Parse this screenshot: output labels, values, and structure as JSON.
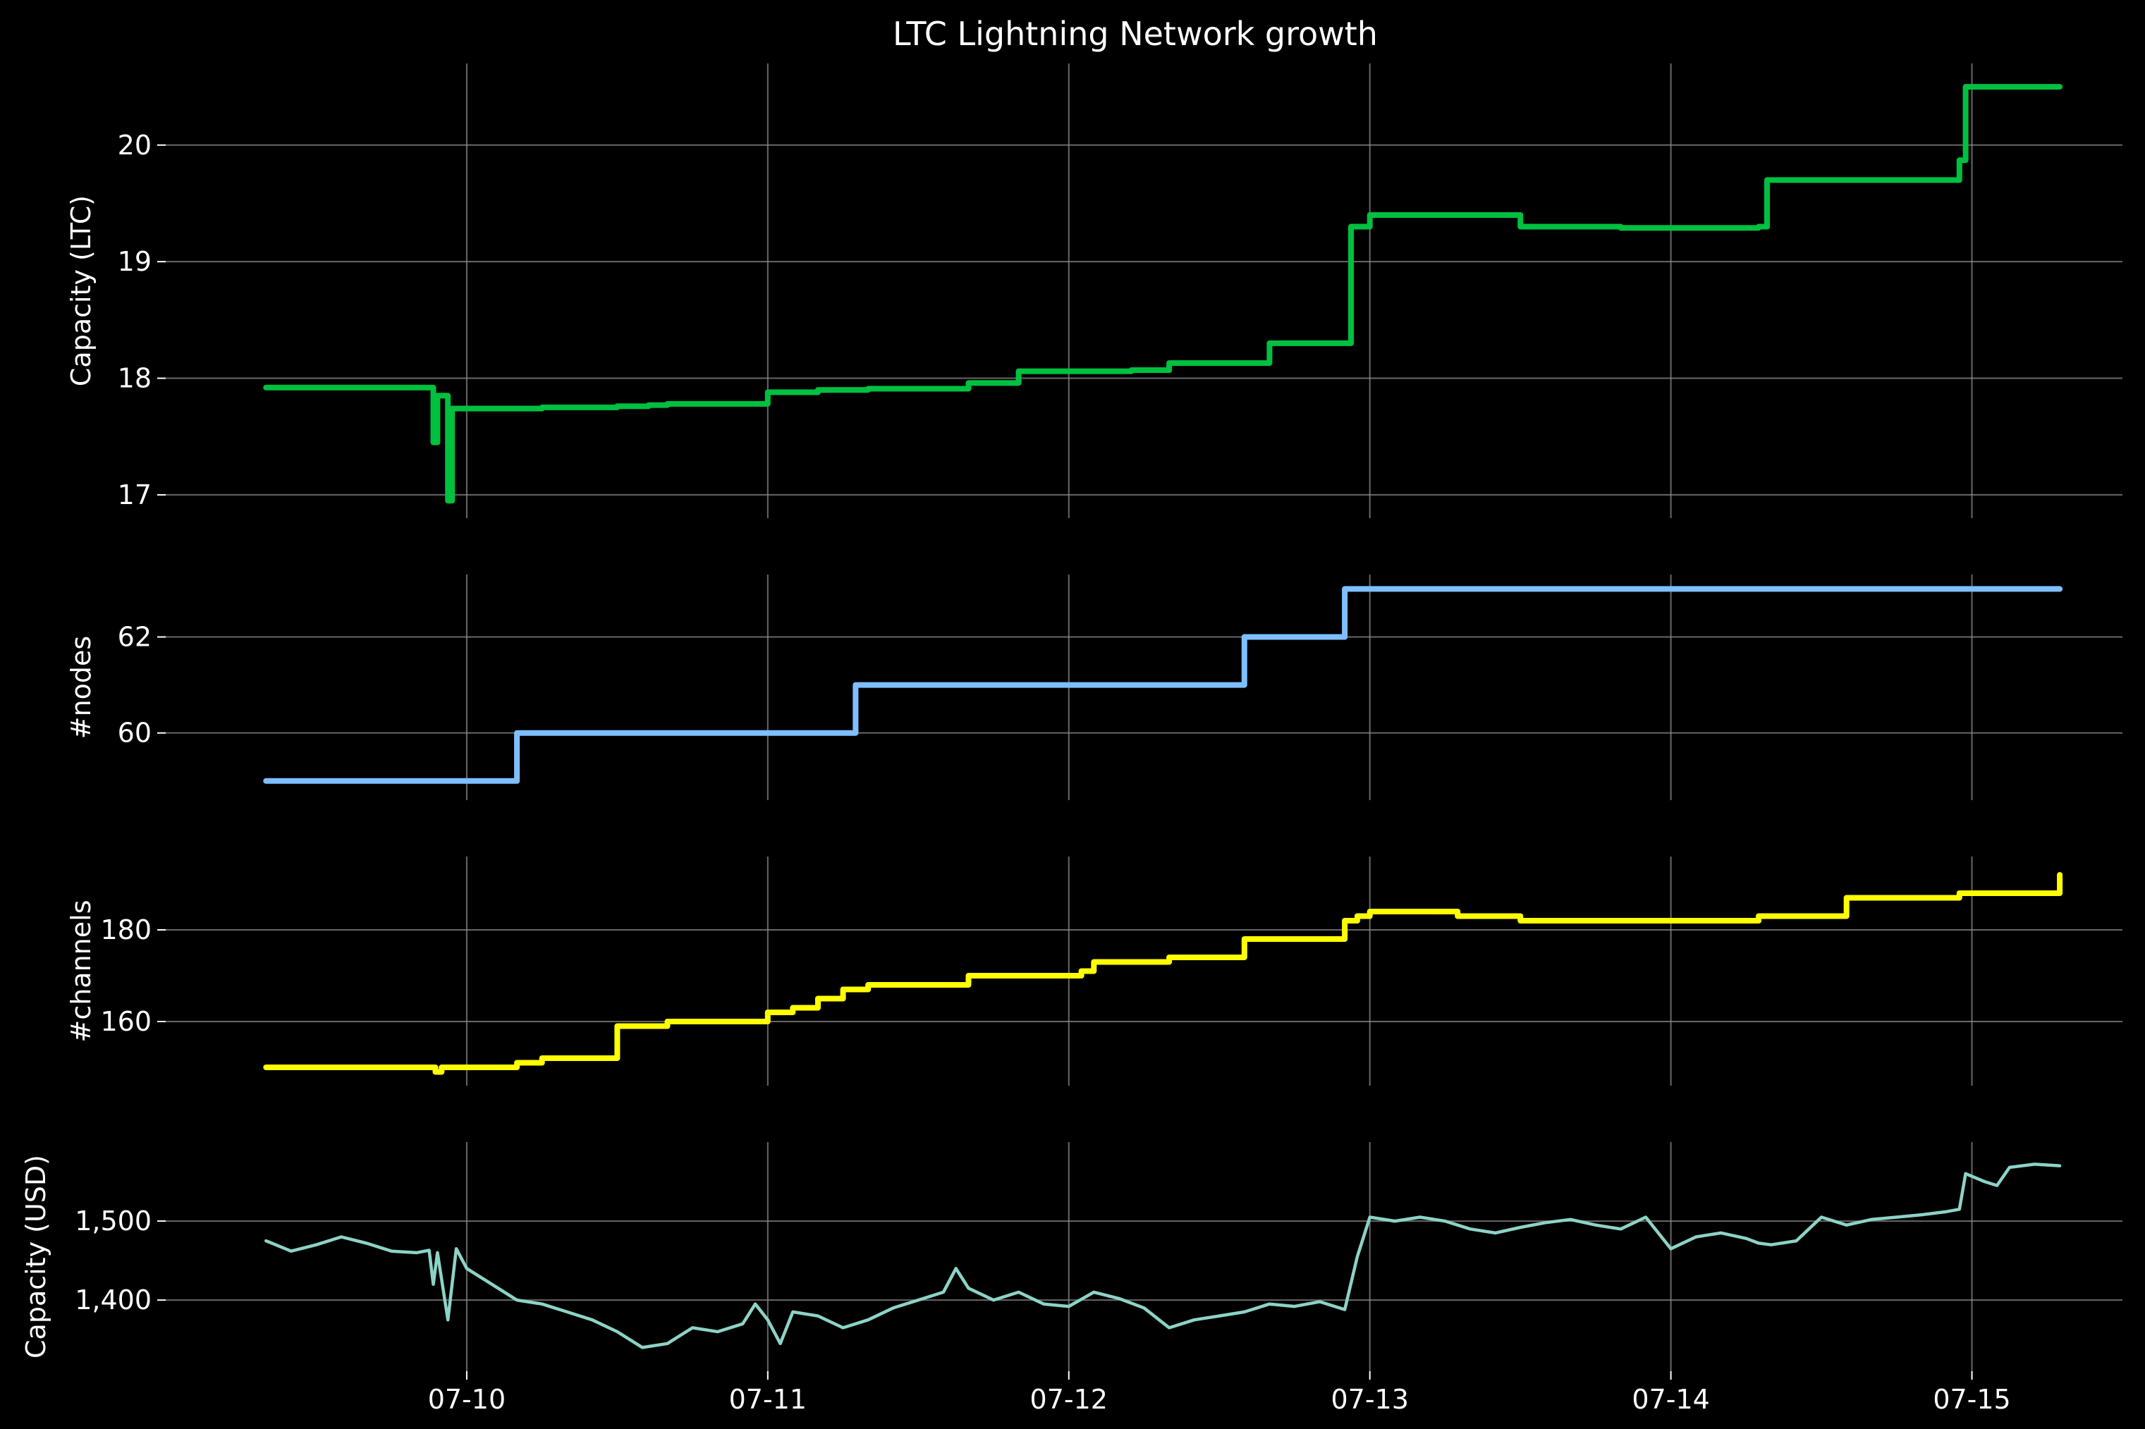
{
  "chart_data": {
    "type": "line",
    "title": "LTC Lightning Network growth",
    "x_axis": {
      "type": "date",
      "range": [
        "07-09 00:00",
        "07-15 12:00"
      ],
      "ticks": [
        {
          "value": "07-10",
          "label": "07-10"
        },
        {
          "value": "07-11",
          "label": "07-11"
        },
        {
          "value": "07-12",
          "label": "07-12"
        },
        {
          "value": "07-13",
          "label": "07-13"
        },
        {
          "value": "07-14",
          "label": "07-14"
        },
        {
          "value": "07-15",
          "label": "07-15"
        }
      ]
    },
    "grid": true,
    "legend": "none",
    "panels": [
      {
        "ylabel": "Capacity (LTC)",
        "ylim": [
          16.8,
          20.7
        ],
        "yticks": [
          {
            "value": 17,
            "label": "17"
          },
          {
            "value": 18,
            "label": "18"
          },
          {
            "value": 19,
            "label": "19"
          },
          {
            "value": 20,
            "label": "20"
          }
        ],
        "color": "#00c040",
        "line_weight": "thick",
        "step": true,
        "series": [
          {
            "x": [
              "07-09 08:00",
              "07-09 21:00",
              "07-09 21:20",
              "07-09 21:40",
              "07-09 22:30",
              "07-09 22:50",
              "07-09 23:10",
              "07-10 06:00",
              "07-10 12:00",
              "07-10 14:30",
              "07-10 16:00",
              "07-11 00:00",
              "07-11 04:00",
              "07-11 08:00",
              "07-11 16:00",
              "07-11 20:00",
              "07-12 05:00",
              "07-12 08:00",
              "07-12 14:00",
              "07-12 16:00",
              "07-12 22:00",
              "07-12 22:30",
              "07-12 23:00",
              "07-13 00:00",
              "07-13 07:00",
              "07-13 12:00",
              "07-13 20:00",
              "07-14 02:00",
              "07-14 07:00",
              "07-14 07:40",
              "07-14 14:00",
              "07-14 23:00",
              "07-14 23:30",
              "07-15 07:00"
            ],
            "y": [
              17.92,
              17.92,
              17.45,
              17.85,
              16.95,
              17.74,
              17.74,
              17.75,
              17.76,
              17.77,
              17.78,
              17.88,
              17.9,
              17.91,
              17.96,
              18.06,
              18.07,
              18.13,
              18.13,
              18.3,
              18.3,
              19.3,
              19.3,
              19.4,
              19.4,
              19.3,
              19.29,
              19.29,
              19.3,
              19.7,
              19.7,
              19.87,
              20.5,
              20.5
            ]
          }
        ]
      },
      {
        "ylabel": "#nodes",
        "ylim": [
          58.6,
          63.3
        ],
        "yticks": [
          {
            "value": 60,
            "label": "60"
          },
          {
            "value": 62,
            "label": "62"
          }
        ],
        "color": "#7fbfff",
        "line_weight": "thick",
        "step": true,
        "series": [
          {
            "x": [
              "07-09 08:00",
              "07-10 04:00",
              "07-11 07:00",
              "07-12 14:00",
              "07-12 22:00",
              "07-15 07:00"
            ],
            "y": [
              59,
              60,
              61,
              62,
              63,
              63
            ]
          }
        ]
      },
      {
        "ylabel": "#channels",
        "ylim": [
          146,
          196
        ],
        "yticks": [
          {
            "value": 160,
            "label": "160"
          },
          {
            "value": 180,
            "label": "180"
          }
        ],
        "color": "#ffff00",
        "line_weight": "thick",
        "step": true,
        "series": [
          {
            "x": [
              "07-09 08:00",
              "07-09 21:30",
              "07-09 22:00",
              "07-10 04:00",
              "07-10 06:00",
              "07-10 12:00",
              "07-10 16:00",
              "07-11 00:00",
              "07-11 02:00",
              "07-11 04:00",
              "07-11 06:00",
              "07-11 08:00",
              "07-11 16:00",
              "07-12 01:00",
              "07-12 02:00",
              "07-12 08:00",
              "07-12 14:00",
              "07-12 22:00",
              "07-12 23:00",
              "07-13 00:00",
              "07-13 07:00",
              "07-13 12:00",
              "07-14 02:00",
              "07-14 07:00",
              "07-14 14:00",
              "07-14 23:00",
              "07-15 07:00"
            ],
            "y": [
              150,
              149,
              150,
              151,
              152,
              159,
              160,
              162,
              163,
              165,
              167,
              168,
              170,
              171,
              173,
              174,
              178,
              182,
              183,
              184,
              183,
              182,
              182,
              183,
              187,
              188,
              192
            ]
          }
        ]
      },
      {
        "ylabel": "Capacity (USD)",
        "ylim": [
          1310,
          1600
        ],
        "yticks": [
          {
            "value": 1400,
            "label": "1,400"
          },
          {
            "value": 1500,
            "label": "1,500"
          }
        ],
        "color": "#8dd3c7",
        "line_weight": "thin",
        "step": false,
        "series": [
          {
            "x": [
              "07-09 08:00",
              "07-09 10:00",
              "07-09 12:00",
              "07-09 14:00",
              "07-09 16:00",
              "07-09 18:00",
              "07-09 20:00",
              "07-09 21:00",
              "07-09 21:20",
              "07-09 21:40",
              "07-09 22:30",
              "07-09 23:10",
              "07-10 00:00",
              "07-10 02:00",
              "07-10 04:00",
              "07-10 06:00",
              "07-10 08:00",
              "07-10 10:00",
              "07-10 12:00",
              "07-10 14:00",
              "07-10 16:00",
              "07-10 18:00",
              "07-10 20:00",
              "07-10 22:00",
              "07-10 23:00",
              "07-11 00:00",
              "07-11 01:00",
              "07-11 02:00",
              "07-11 04:00",
              "07-11 06:00",
              "07-11 08:00",
              "07-11 10:00",
              "07-11 12:00",
              "07-11 14:00",
              "07-11 15:00",
              "07-11 16:00",
              "07-11 18:00",
              "07-11 20:00",
              "07-11 22:00",
              "07-12 00:00",
              "07-12 02:00",
              "07-12 04:00",
              "07-12 06:00",
              "07-12 08:00",
              "07-12 10:00",
              "07-12 12:00",
              "07-12 14:00",
              "07-12 16:00",
              "07-12 18:00",
              "07-12 20:00",
              "07-12 22:00",
              "07-12 23:00",
              "07-13 00:00",
              "07-13 02:00",
              "07-13 04:00",
              "07-13 06:00",
              "07-13 08:00",
              "07-13 10:00",
              "07-13 12:00",
              "07-13 14:00",
              "07-13 16:00",
              "07-13 18:00",
              "07-13 20:00",
              "07-13 22:00",
              "07-14 00:00",
              "07-14 02:00",
              "07-14 04:00",
              "07-14 06:00",
              "07-14 07:00",
              "07-14 08:00",
              "07-14 10:00",
              "07-14 12:00",
              "07-14 14:00",
              "07-14 16:00",
              "07-14 18:00",
              "07-14 20:00",
              "07-14 22:00",
              "07-14 23:00",
              "07-14 23:30",
              "07-15 01:00",
              "07-15 02:00",
              "07-15 03:00",
              "07-15 05:00",
              "07-15 07:00"
            ],
            "y": [
              1475,
              1462,
              1470,
              1480,
              1472,
              1462,
              1460,
              1463,
              1420,
              1460,
              1375,
              1465,
              1440,
              1420,
              1400,
              1395,
              1385,
              1375,
              1360,
              1340,
              1345,
              1365,
              1360,
              1370,
              1395,
              1375,
              1345,
              1385,
              1380,
              1365,
              1375,
              1390,
              1400,
              1410,
              1440,
              1415,
              1400,
              1410,
              1395,
              1392,
              1410,
              1402,
              1390,
              1365,
              1375,
              1380,
              1385,
              1395,
              1392,
              1398,
              1388,
              1455,
              1505,
              1500,
              1505,
              1500,
              1490,
              1485,
              1492,
              1498,
              1502,
              1495,
              1490,
              1505,
              1465,
              1480,
              1485,
              1478,
              1472,
              1470,
              1475,
              1505,
              1495,
              1502,
              1505,
              1508,
              1512,
              1515,
              1560,
              1550,
              1545,
              1568,
              1572,
              1570
            ]
          }
        ]
      }
    ]
  }
}
